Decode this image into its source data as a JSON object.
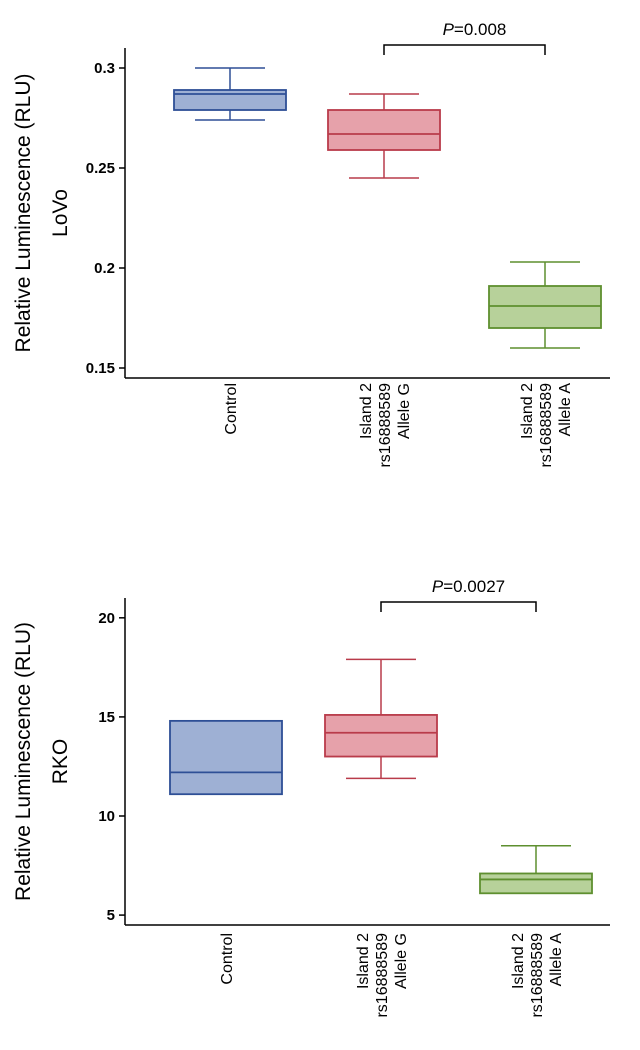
{
  "chart_data": [
    {
      "type": "box",
      "ylabel_lines": [
        "Relative Luminescence (RLU)",
        "LoVo"
      ],
      "categories": [
        [
          "Control"
        ],
        [
          "Island 2",
          "rs16888589",
          "Allele G"
        ],
        [
          "Island 2",
          "rs16888589",
          "Allele A"
        ]
      ],
      "ylim": [
        0.145,
        0.31
      ],
      "yticks": [
        0.15,
        0.2,
        0.25,
        0.3
      ],
      "ytick_labels": [
        "0.15",
        "0.2",
        "0.25",
        "0.3"
      ],
      "boxes": [
        {
          "whisker_low": 0.274,
          "q1": 0.279,
          "median": 0.287,
          "q3": 0.289,
          "whisker_high": 0.3,
          "fill": "#9eb0d4",
          "stroke": "#2e4f96"
        },
        {
          "whisker_low": 0.245,
          "q1": 0.259,
          "median": 0.267,
          "q3": 0.279,
          "whisker_high": 0.287,
          "fill": "#e6a1aa",
          "stroke": "#b93b4a"
        },
        {
          "whisker_low": 0.16,
          "q1": 0.17,
          "median": 0.181,
          "q3": 0.191,
          "whisker_high": 0.203,
          "fill": "#b7d19a",
          "stroke": "#5e8f2f"
        }
      ],
      "comparison": {
        "from": 1,
        "to": 2,
        "p_italic": "P",
        "p_value": "=0.008"
      }
    },
    {
      "type": "box",
      "ylabel_lines": [
        "Relative Luminescence (RLU)",
        "RKO"
      ],
      "categories": [
        [
          "Control"
        ],
        [
          "Island 2",
          "rs16888589",
          "Allele G"
        ],
        [
          "Island 2",
          "rs16888589",
          "Allele A"
        ]
      ],
      "ylim": [
        4.5,
        21.0
      ],
      "yticks": [
        5,
        10,
        15,
        20
      ],
      "ytick_labels": [
        "5",
        "10",
        "15",
        "20"
      ],
      "boxes": [
        {
          "whisker_low": 11.1,
          "q1": 11.1,
          "median": 12.2,
          "q3": 14.8,
          "whisker_high": 14.8,
          "fill": "#9eb0d4",
          "stroke": "#2e4f96"
        },
        {
          "whisker_low": 11.9,
          "q1": 13.0,
          "median": 14.2,
          "q3": 15.1,
          "whisker_high": 17.9,
          "fill": "#e6a1aa",
          "stroke": "#b93b4a"
        },
        {
          "whisker_low": 6.1,
          "q1": 6.1,
          "median": 6.8,
          "q3": 7.1,
          "whisker_high": 8.5,
          "fill": "#b7d19a",
          "stroke": "#5e8f2f"
        }
      ],
      "comparison": {
        "from": 1,
        "to": 2,
        "p_italic": "P",
        "p_value": "=0.0027"
      }
    }
  ]
}
